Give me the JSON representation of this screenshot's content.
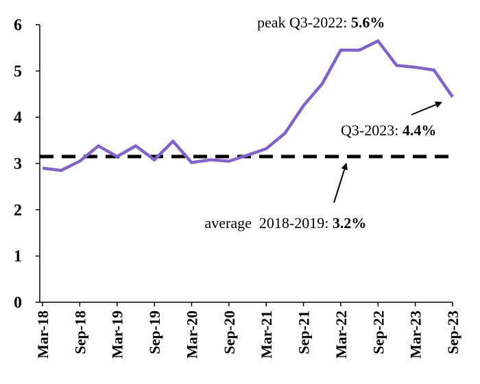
{
  "chart_data": {
    "type": "line",
    "title": "",
    "xlabel": "",
    "ylabel": "",
    "ylim": [
      0,
      6
    ],
    "yticks": [
      "0",
      "1",
      "2",
      "3",
      "4",
      "5",
      "6"
    ],
    "categories": [
      "Mar-18",
      "Jun-18",
      "Sep-18",
      "Dec-18",
      "Mar-19",
      "Jun-19",
      "Sep-19",
      "Dec-19",
      "Mar-20",
      "Jun-20",
      "Sep-20",
      "Dec-20",
      "Mar-21",
      "Jun-21",
      "Sep-21",
      "Dec-21",
      "Mar-22",
      "Jun-22",
      "Sep-22",
      "Dec-22",
      "Mar-23",
      "Jun-23",
      "Sep-23"
    ],
    "xtick_labels": [
      "Mar-18",
      "Sep-18",
      "Mar-19",
      "Sep-19",
      "Mar-20",
      "Sep-20",
      "Mar-21",
      "Sep-21",
      "Mar-22",
      "Sep-22",
      "Mar-23",
      "Sep-23"
    ],
    "series": [
      {
        "color": "#8064c8",
        "values": [
          2.9,
          2.85,
          3.05,
          3.38,
          3.15,
          3.38,
          3.08,
          3.48,
          3.02,
          3.08,
          3.05,
          3.18,
          3.32,
          3.65,
          4.25,
          4.72,
          5.45,
          5.45,
          5.65,
          5.12,
          5.08,
          5.02,
          4.44
        ]
      }
    ],
    "reference_line": {
      "value": 3.15,
      "style": "dashed",
      "color": "#000000"
    },
    "annotations": {
      "peak": {
        "text": "peak Q3-2022: ",
        "value": "5.6%"
      },
      "latest": {
        "text": "Q3-2023: ",
        "value": "4.4%"
      },
      "average": {
        "text": "average  2018-2019: ",
        "value": "3.2%"
      }
    },
    "grid": false,
    "legend": "none"
  }
}
